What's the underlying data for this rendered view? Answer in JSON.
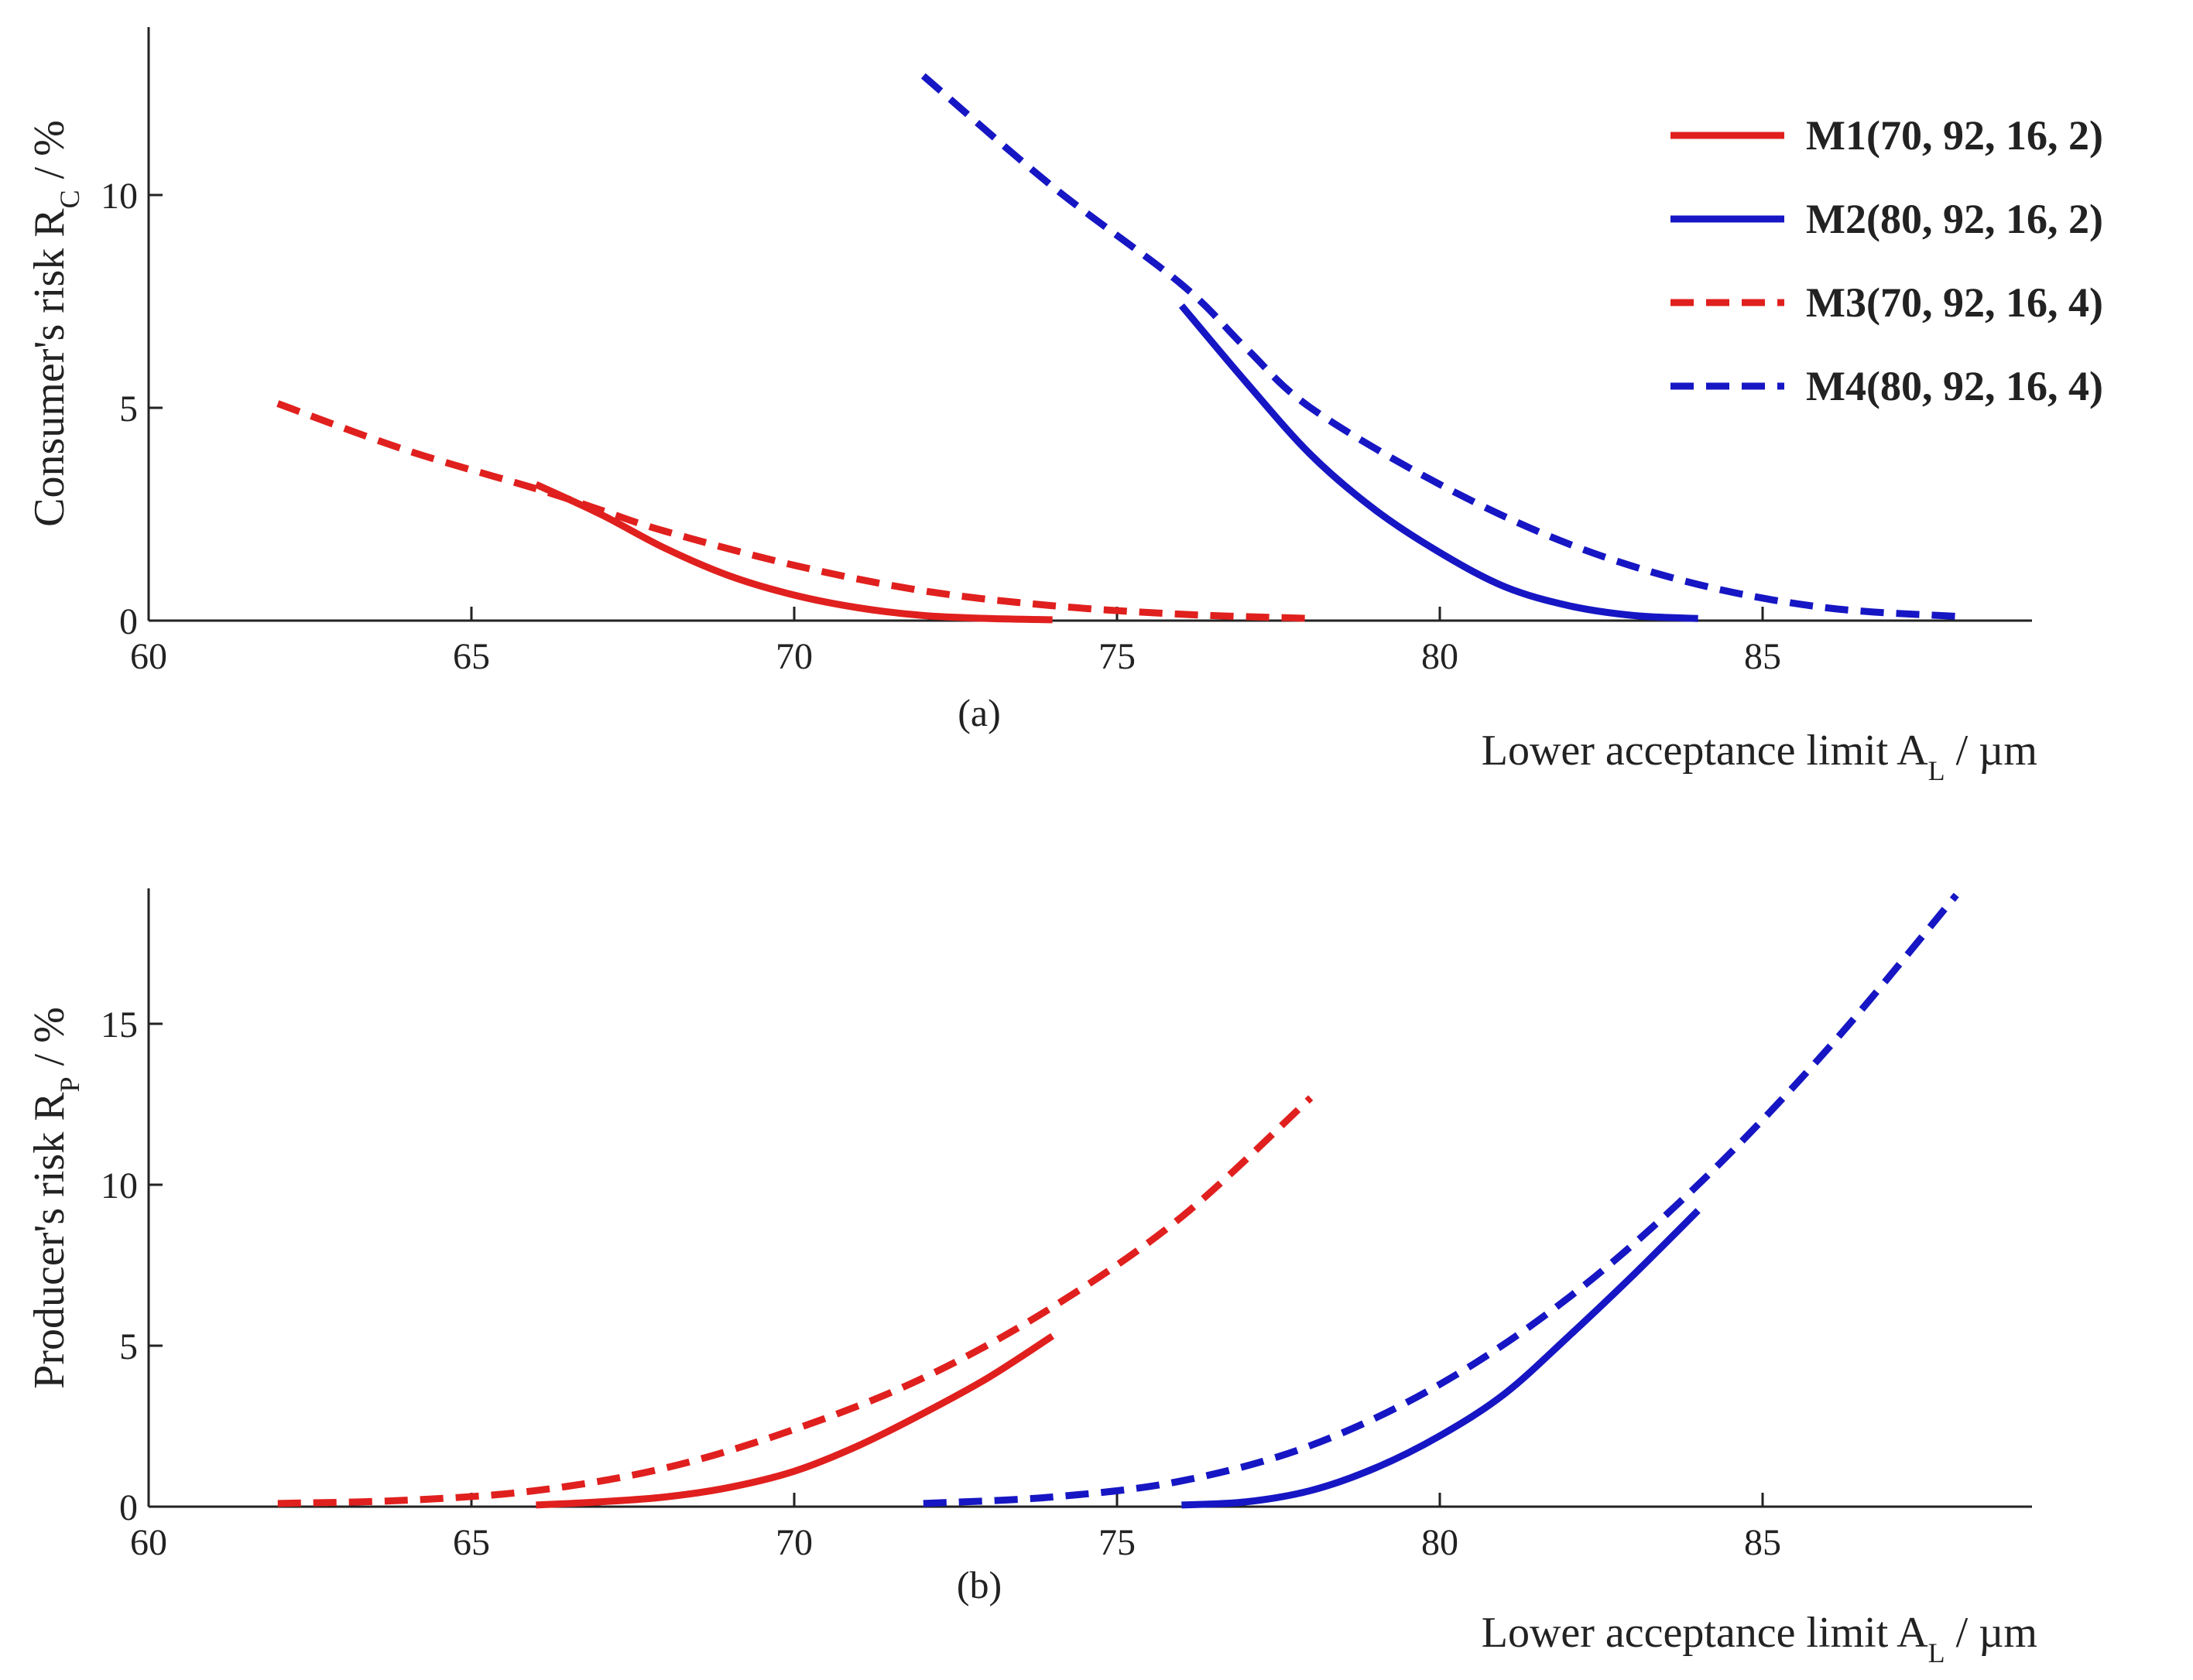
{
  "colors": {
    "red": "#e0201e",
    "blue": "#1616c4",
    "axis": "#222222"
  },
  "legend": [
    {
      "label": "M1(70, 92, 16, 2)",
      "color": "#e0201e",
      "dash": false
    },
    {
      "label": "M2(80, 92, 16, 2)",
      "color": "#1616c4",
      "dash": false
    },
    {
      "label": "M3(70, 92, 16, 4)",
      "color": "#e0201e",
      "dash": true
    },
    {
      "label": "M4(80, 92, 16, 4)",
      "color": "#1616c4",
      "dash": true
    }
  ],
  "chart_data": [
    {
      "type": "line",
      "panel_label": "(a)",
      "ylabel": "Consumer's  risk R",
      "ylabel_sub": "C",
      "ylabel_unit": " / %",
      "xlabel": "Lower acceptance limit A",
      "xlabel_sub": "L",
      "xlabel_unit": " / µm",
      "xlim": [
        60,
        89.5
      ],
      "ylim": [
        0,
        14
      ],
      "x_ticks": [
        60,
        65,
        70,
        75,
        80,
        85
      ],
      "y_ticks": [
        0,
        5,
        10
      ],
      "grid": false,
      "legend_position": "top-right",
      "series": [
        {
          "name": "M1(70, 92, 16, 2)",
          "color": "#e0201e",
          "dash": false,
          "x": [
            66,
            67,
            68,
            69,
            70,
            71,
            72,
            73,
            74
          ],
          "y": [
            3.2,
            2.5,
            1.7,
            1.05,
            0.6,
            0.3,
            0.12,
            0.05,
            0.02
          ]
        },
        {
          "name": "M2(80, 92, 16, 2)",
          "color": "#1616c4",
          "dash": false,
          "x": [
            76,
            77,
            78,
            79,
            80,
            81,
            82,
            83,
            84
          ],
          "y": [
            7.4,
            5.6,
            3.9,
            2.6,
            1.6,
            0.8,
            0.35,
            0.12,
            0.05
          ]
        },
        {
          "name": "M3(70, 92, 16, 4)",
          "color": "#e0201e",
          "dash": true,
          "x": [
            62,
            64,
            66,
            67,
            68,
            70,
            72,
            74,
            76,
            78
          ],
          "y": [
            5.1,
            4.0,
            3.1,
            2.6,
            2.1,
            1.3,
            0.7,
            0.35,
            0.15,
            0.05
          ]
        },
        {
          "name": "M4(80, 92, 16, 4)",
          "color": "#1616c4",
          "dash": true,
          "x": [
            72,
            74,
            76,
            77,
            78,
            80,
            82,
            84,
            86,
            88
          ],
          "y": [
            12.8,
            10.2,
            7.9,
            6.4,
            5.0,
            3.2,
            1.8,
            0.85,
            0.3,
            0.1
          ]
        }
      ]
    },
    {
      "type": "line",
      "panel_label": "(b)",
      "ylabel": "Producer's risk R",
      "ylabel_sub": "P",
      "ylabel_unit": " / %",
      "xlabel": "Lower acceptance limit A",
      "xlabel_sub": "L",
      "xlabel_unit": " / µm",
      "xlim": [
        60,
        89.5
      ],
      "ylim": [
        0,
        19
      ],
      "x_ticks": [
        60,
        65,
        70,
        75,
        80,
        85
      ],
      "y_ticks": [
        0,
        5,
        10,
        15
      ],
      "grid": false,
      "legend_position": "none",
      "series": [
        {
          "name": "M1(70, 92, 16, 2)",
          "color": "#e0201e",
          "dash": false,
          "x": [
            66,
            67,
            68,
            69,
            70,
            71,
            72,
            73,
            74
          ],
          "y": [
            0.05,
            0.15,
            0.3,
            0.6,
            1.1,
            1.9,
            2.9,
            4.0,
            5.3
          ]
        },
        {
          "name": "M2(80, 92, 16, 2)",
          "color": "#1616c4",
          "dash": false,
          "x": [
            76,
            77,
            78,
            79,
            80,
            81,
            82,
            83,
            84
          ],
          "y": [
            0.05,
            0.15,
            0.5,
            1.2,
            2.2,
            3.5,
            5.3,
            7.2,
            9.2
          ]
        },
        {
          "name": "M3(70, 92, 16, 4)",
          "color": "#e0201e",
          "dash": true,
          "x": [
            62,
            64,
            66,
            68,
            70,
            72,
            74,
            76,
            78
          ],
          "y": [
            0.1,
            0.2,
            0.5,
            1.2,
            2.4,
            4.0,
            6.2,
            9.0,
            12.7
          ]
        },
        {
          "name": "M4(80, 92, 16, 4)",
          "color": "#1616c4",
          "dash": true,
          "x": [
            72,
            74,
            76,
            78,
            80,
            82,
            84,
            86,
            88
          ],
          "y": [
            0.1,
            0.3,
            0.8,
            1.9,
            3.8,
            6.5,
            10.0,
            14.2,
            19.0
          ]
        }
      ]
    }
  ]
}
